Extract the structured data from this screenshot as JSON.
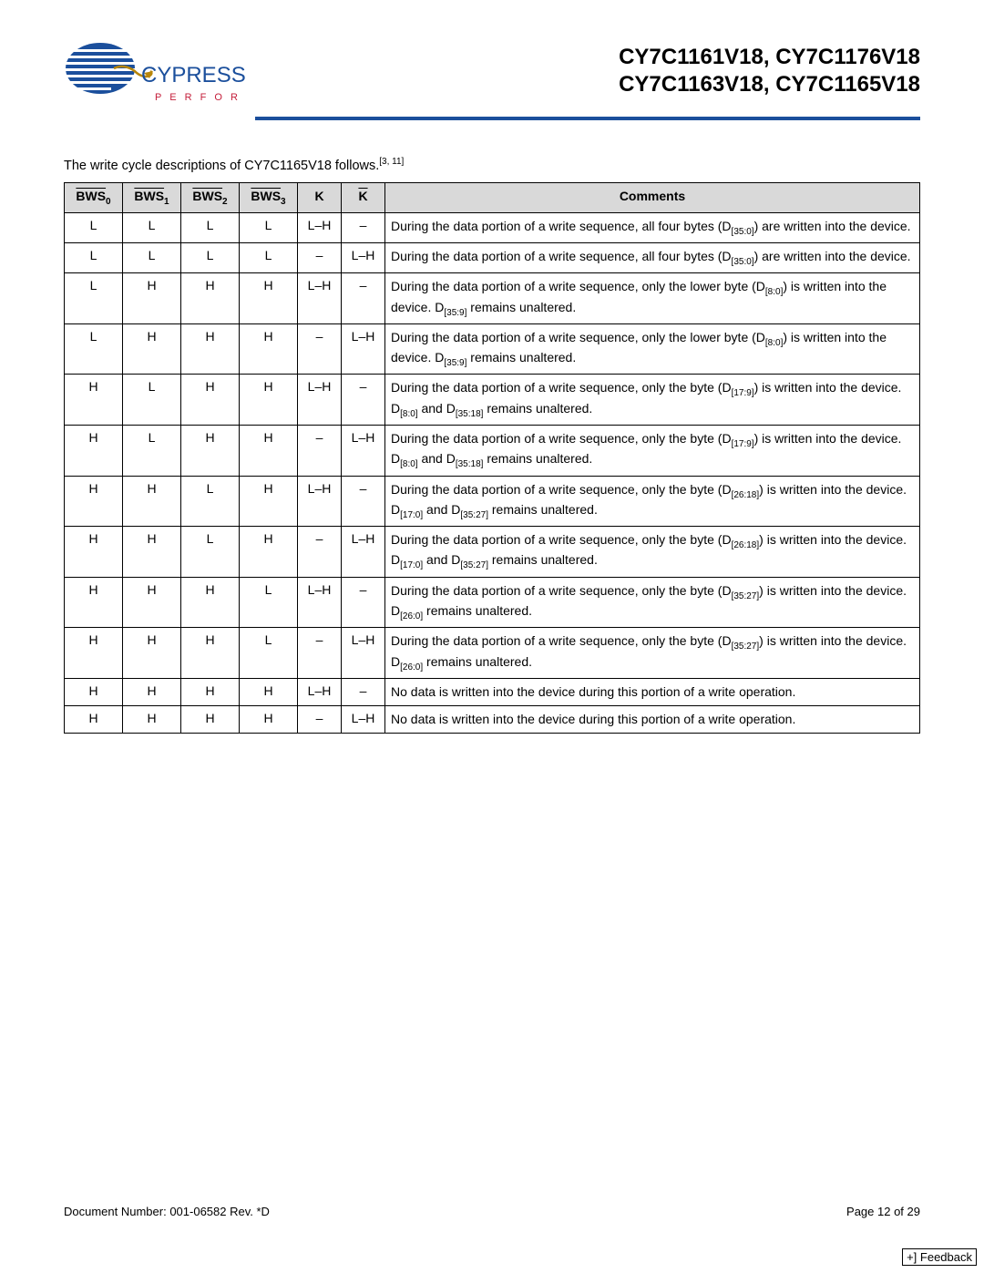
{
  "header": {
    "logo_brand": "CYPRESS",
    "logo_tagline": "P E R F O R M",
    "title_line_1": "CY7C1161V18, CY7C1176V18",
    "title_line_2": "CY7C1163V18, CY7C1165V18",
    "rule_color": "#1b4f9c"
  },
  "caption": {
    "text_prefix": "The write cycle descriptions of CY7C1165V18 follows.",
    "footnote": "[3, 11]"
  },
  "table": {
    "columns": [
      {
        "label": "BWS",
        "sub": "0",
        "overline": true
      },
      {
        "label": "BWS",
        "sub": "1",
        "overline": true
      },
      {
        "label": "BWS",
        "sub": "2",
        "overline": true
      },
      {
        "label": "BWS",
        "sub": "3",
        "overline": true
      },
      {
        "label": "K",
        "sub": "",
        "overline": false
      },
      {
        "label": "K",
        "sub": "",
        "overline": true
      },
      {
        "label": "Comments",
        "sub": "",
        "overline": false
      }
    ],
    "col_widths": [
      "64px",
      "64px",
      "64px",
      "64px",
      "48px",
      "48px",
      "auto"
    ],
    "header_bg": "#d9d9d9",
    "border_color": "#000000",
    "rows": [
      {
        "c": [
          "L",
          "L",
          "L",
          "L",
          "L–H",
          "–"
        ],
        "comment_parts": [
          {
            "t": "During the data portion of a write sequence, all four bytes (D"
          },
          {
            "sub": "[35:0]"
          },
          {
            "t": ") are written into the device."
          }
        ]
      },
      {
        "c": [
          "L",
          "L",
          "L",
          "L",
          "–",
          "L–H"
        ],
        "comment_parts": [
          {
            "t": "During the data portion of a write sequence, all four bytes (D"
          },
          {
            "sub": "[35:0]"
          },
          {
            "t": ") are written into the device."
          }
        ]
      },
      {
        "c": [
          "L",
          "H",
          "H",
          "H",
          "L–H",
          "–"
        ],
        "comment_parts": [
          {
            "t": "During the data portion of a write sequence, only the lower byte (D"
          },
          {
            "sub": "[8:0]"
          },
          {
            "t": ") is written into the device. D"
          },
          {
            "sub": "[35:9]"
          },
          {
            "t": " remains unaltered."
          }
        ]
      },
      {
        "c": [
          "L",
          "H",
          "H",
          "H",
          "–",
          "L–H"
        ],
        "comment_parts": [
          {
            "t": "During the data portion of a write sequence, only the lower byte (D"
          },
          {
            "sub": "[8:0]"
          },
          {
            "t": ") is written into the device. D"
          },
          {
            "sub": "[35:9]"
          },
          {
            "t": " remains unaltered."
          }
        ]
      },
      {
        "c": [
          "H",
          "L",
          "H",
          "H",
          "L–H",
          "–"
        ],
        "comment_parts": [
          {
            "t": "During the data portion of a write sequence, only the byte (D"
          },
          {
            "sub": "[17:9]"
          },
          {
            "t": ") is written into the device. D"
          },
          {
            "sub": "[8:0]"
          },
          {
            "t": " and D"
          },
          {
            "sub": "[35:18]"
          },
          {
            "t": "  remains unaltered."
          }
        ]
      },
      {
        "c": [
          "H",
          "L",
          "H",
          "H",
          "–",
          "L–H"
        ],
        "comment_parts": [
          {
            "t": "During the data portion of a write sequence, only the byte (D"
          },
          {
            "sub": "[17:9]"
          },
          {
            "t": ") is written into the device. D"
          },
          {
            "sub": "[8:0]"
          },
          {
            "t": " and D"
          },
          {
            "sub": "[35:18]"
          },
          {
            "t": "  remains unaltered."
          }
        ]
      },
      {
        "c": [
          "H",
          "H",
          "L",
          "H",
          "L–H",
          "–"
        ],
        "comment_parts": [
          {
            "t": "During the data portion of a write sequence, only the byte (D"
          },
          {
            "sub": "[26:18]"
          },
          {
            "t": ") is written into the device. D"
          },
          {
            "sub": "[17:0]"
          },
          {
            "t": " and D"
          },
          {
            "sub": "[35:27]"
          },
          {
            "t": "  remains unaltered."
          }
        ]
      },
      {
        "c": [
          "H",
          "H",
          "L",
          "H",
          "–",
          "L–H"
        ],
        "comment_parts": [
          {
            "t": "During the data portion of a write sequence, only the byte (D"
          },
          {
            "sub": "[26:18]"
          },
          {
            "t": ") is written into the device. D"
          },
          {
            "sub": "[17:0]"
          },
          {
            "t": " and D"
          },
          {
            "sub": "[35:27]"
          },
          {
            "t": "  remains unaltered."
          }
        ]
      },
      {
        "c": [
          "H",
          "H",
          "H",
          "L",
          "L–H",
          "–"
        ],
        "comment_parts": [
          {
            "t": "During the data portion of a write sequence, only the byte (D"
          },
          {
            "sub": "[35:27]"
          },
          {
            "t": ") is written into the device. D"
          },
          {
            "sub": "[26:0]"
          },
          {
            "t": " remains unaltered."
          }
        ]
      },
      {
        "c": [
          "H",
          "H",
          "H",
          "L",
          "–",
          "L–H"
        ],
        "comment_parts": [
          {
            "t": "During the data portion of a write sequence, only the byte (D"
          },
          {
            "sub": "[35:27]"
          },
          {
            "t": ") is written into the device. D"
          },
          {
            "sub": "[26:0]"
          },
          {
            "t": " remains unaltered."
          }
        ]
      },
      {
        "c": [
          "H",
          "H",
          "H",
          "H",
          "L–H",
          "–"
        ],
        "comment_parts": [
          {
            "t": "No data is written into the device during this portion of a write operation."
          }
        ]
      },
      {
        "c": [
          "H",
          "H",
          "H",
          "H",
          "–",
          "L–H"
        ],
        "comment_parts": [
          {
            "t": "No data is written into the device during this portion of a write operation."
          }
        ]
      }
    ]
  },
  "footer": {
    "doc_number": "Document Number: 001-06582 Rev. *D",
    "page": "Page 12 of 29",
    "feedback": "+] Feedback"
  },
  "colors": {
    "logo_blue": "#1b4f9c",
    "logo_gold": "#b8860b",
    "tagline_red": "#c41e3a"
  }
}
